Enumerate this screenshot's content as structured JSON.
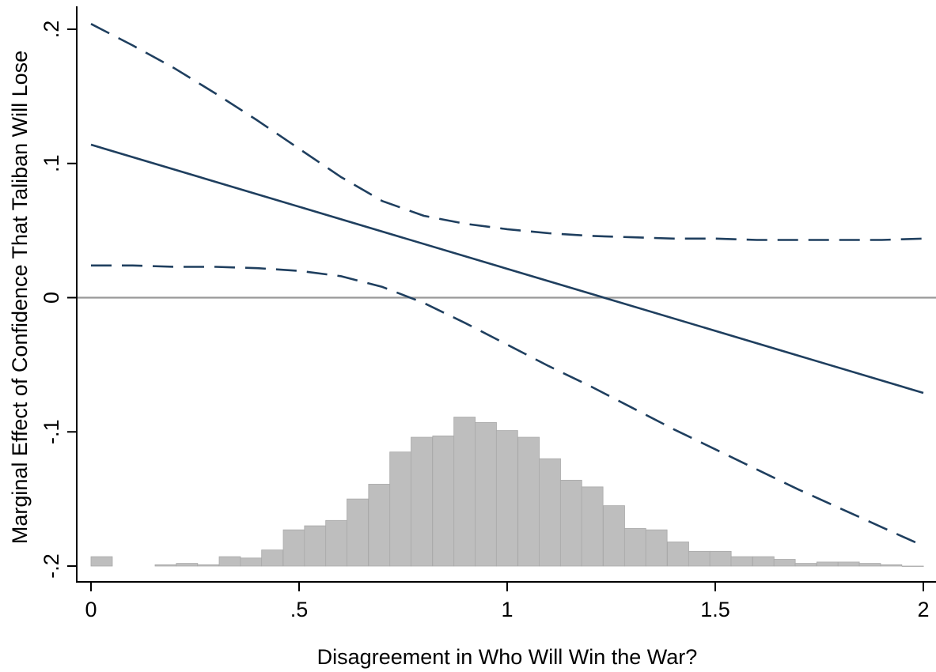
{
  "chart_data": {
    "type": "line",
    "title": "",
    "xlabel": "Disagreement in Who Will Win the War?",
    "ylabel": "Marginal Effect of Confidence That Taliban Will Lose",
    "xlim": [
      0,
      2
    ],
    "ylim": [
      -0.2,
      0.2
    ],
    "x_ticks": [
      {
        "value": 0,
        "label": "0"
      },
      {
        "value": 0.5,
        "label": ".5"
      },
      {
        "value": 1,
        "label": "1"
      },
      {
        "value": 1.5,
        "label": "1.5"
      },
      {
        "value": 2,
        "label": "2"
      }
    ],
    "y_ticks": [
      {
        "value": 0.2,
        "label": ".2"
      },
      {
        "value": 0.1,
        "label": ".1"
      },
      {
        "value": 0,
        "label": "0"
      },
      {
        "value": -0.1,
        "label": "-.1"
      },
      {
        "value": -0.2,
        "label": "-.2"
      }
    ],
    "grid": false,
    "legend": "none",
    "reference_line": {
      "y": 0,
      "color": "#999999"
    },
    "colors": {
      "line": "#1f3f5f",
      "histogram": "#bebebe",
      "histogram_edge": "#a9a9a9"
    },
    "series": [
      {
        "style": "solid",
        "x": [
          0,
          2
        ],
        "y": [
          0.114,
          -0.071
        ]
      },
      {
        "style": "dashed",
        "x": [
          0,
          0.1,
          0.2,
          0.3,
          0.4,
          0.5,
          0.6,
          0.7,
          0.8,
          0.9,
          1.0,
          1.1,
          1.2,
          1.3,
          1.4,
          1.5,
          1.6,
          1.7,
          1.8,
          1.9,
          2.0
        ],
        "y": [
          0.204,
          0.188,
          0.171,
          0.152,
          0.132,
          0.111,
          0.09,
          0.072,
          0.061,
          0.055,
          0.051,
          0.048,
          0.046,
          0.045,
          0.044,
          0.044,
          0.043,
          0.043,
          0.043,
          0.043,
          0.044
        ]
      },
      {
        "style": "dashed",
        "x": [
          0,
          0.1,
          0.2,
          0.3,
          0.4,
          0.5,
          0.6,
          0.7,
          0.8,
          0.9,
          1.0,
          1.1,
          1.2,
          1.3,
          1.4,
          1.5,
          1.6,
          1.7,
          1.8,
          1.9,
          2.0
        ],
        "y": [
          0.024,
          0.024,
          0.023,
          0.023,
          0.022,
          0.02,
          0.016,
          0.008,
          -0.004,
          -0.019,
          -0.035,
          -0.051,
          -0.066,
          -0.082,
          -0.098,
          -0.113,
          -0.128,
          -0.143,
          -0.157,
          -0.171,
          -0.185
        ]
      }
    ],
    "histogram": {
      "bin_width": 0.0513,
      "bins": [
        {
          "x": 0.0,
          "y": -0.193
        },
        {
          "x": 0.154,
          "y": -0.199
        },
        {
          "x": 0.205,
          "y": -0.198
        },
        {
          "x": 0.256,
          "y": -0.199
        },
        {
          "x": 0.308,
          "y": -0.193
        },
        {
          "x": 0.359,
          "y": -0.194
        },
        {
          "x": 0.41,
          "y": -0.188
        },
        {
          "x": 0.462,
          "y": -0.173
        },
        {
          "x": 0.513,
          "y": -0.17
        },
        {
          "x": 0.564,
          "y": -0.166
        },
        {
          "x": 0.615,
          "y": -0.15
        },
        {
          "x": 0.667,
          "y": -0.139
        },
        {
          "x": 0.718,
          "y": -0.115
        },
        {
          "x": 0.769,
          "y": -0.104
        },
        {
          "x": 0.821,
          "y": -0.103
        },
        {
          "x": 0.872,
          "y": -0.089
        },
        {
          "x": 0.923,
          "y": -0.093
        },
        {
          "x": 0.974,
          "y": -0.099
        },
        {
          "x": 1.026,
          "y": -0.104
        },
        {
          "x": 1.077,
          "y": -0.12
        },
        {
          "x": 1.128,
          "y": -0.136
        },
        {
          "x": 1.179,
          "y": -0.141
        },
        {
          "x": 1.231,
          "y": -0.155
        },
        {
          "x": 1.282,
          "y": -0.172
        },
        {
          "x": 1.333,
          "y": -0.173
        },
        {
          "x": 1.385,
          "y": -0.182
        },
        {
          "x": 1.436,
          "y": -0.189
        },
        {
          "x": 1.487,
          "y": -0.189
        },
        {
          "x": 1.538,
          "y": -0.193
        },
        {
          "x": 1.59,
          "y": -0.193
        },
        {
          "x": 1.641,
          "y": -0.195
        },
        {
          "x": 1.692,
          "y": -0.198
        },
        {
          "x": 1.744,
          "y": -0.197
        },
        {
          "x": 1.795,
          "y": -0.197
        },
        {
          "x": 1.846,
          "y": -0.198
        },
        {
          "x": 1.897,
          "y": -0.199
        },
        {
          "x": 1.949,
          "y": -0.2
        }
      ]
    }
  }
}
